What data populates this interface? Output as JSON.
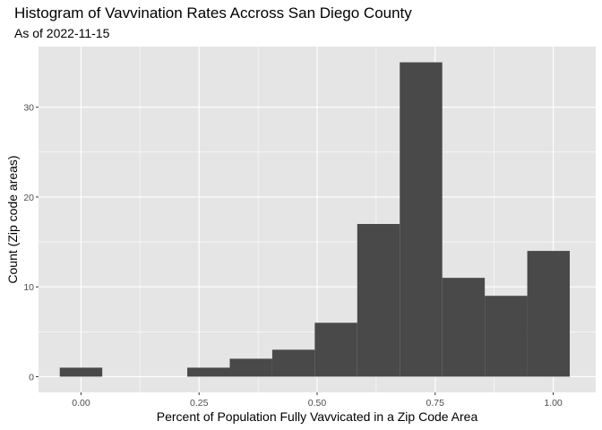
{
  "chart_data": {
    "type": "bar",
    "title": "Histogram of Vavvination Rates Accross San Diego County",
    "subtitle": "As of 2022-11-15",
    "xlabel": "Percent of Population Fully Vavvicated in a Zip Code Area",
    "ylabel": "Count (Zip code areas)",
    "xlim": [
      -0.09,
      1.09
    ],
    "ylim": [
      -1.75,
      36.75
    ],
    "x_ticks": [
      0.0,
      0.25,
      0.5,
      0.75,
      1.0
    ],
    "x_tick_labels": [
      "0.00",
      "0.25",
      "0.50",
      "0.75",
      "1.00"
    ],
    "y_ticks": [
      0,
      10,
      20,
      30
    ],
    "y_tick_labels": [
      "0",
      "10",
      "20",
      "30"
    ],
    "bin_width": 0.09,
    "bins": [
      {
        "center": 0.0,
        "count": 1
      },
      {
        "center": 0.09,
        "count": 0
      },
      {
        "center": 0.18,
        "count": 0
      },
      {
        "center": 0.27,
        "count": 1
      },
      {
        "center": 0.36,
        "count": 2
      },
      {
        "center": 0.45,
        "count": 3
      },
      {
        "center": 0.54,
        "count": 6
      },
      {
        "center": 0.63,
        "count": 17
      },
      {
        "center": 0.72,
        "count": 35
      },
      {
        "center": 0.81,
        "count": 11
      },
      {
        "center": 0.9,
        "count": 9
      },
      {
        "center": 0.99,
        "count": 14
      }
    ],
    "grid": true,
    "colors": {
      "panel_background": "#e5e5e5",
      "grid": "#ffffff",
      "bar_fill": "#494949"
    }
  }
}
